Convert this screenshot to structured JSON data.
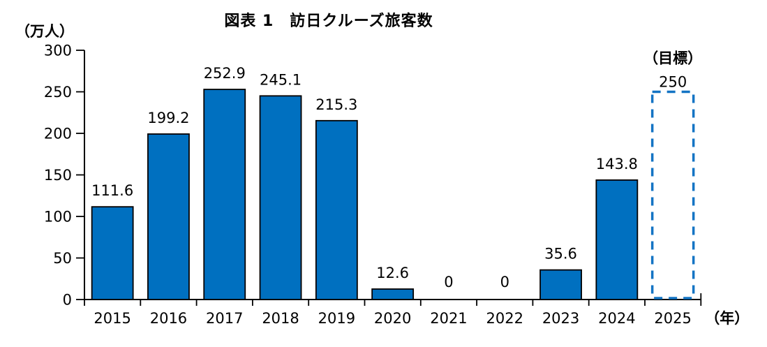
{
  "title": "図表 1　訪日クルーズ旅客数",
  "y_axis_unit": "（万人）",
  "x_axis_unit": "（年）",
  "target_annotation": "（目標）",
  "colors": {
    "bar_fill": "#0070C0",
    "bar_stroke": "#000000",
    "target_outline": "#1474C4",
    "axis": "#000000",
    "text": "#000000",
    "background": "#ffffff"
  },
  "chart_data": {
    "type": "bar",
    "title": "図表 1　訪日クルーズ旅客数",
    "categories": [
      "2015",
      "2016",
      "2017",
      "2018",
      "2019",
      "2020",
      "2021",
      "2022",
      "2023",
      "2024",
      "2025"
    ],
    "values": [
      111.6,
      199.2,
      252.9,
      245.1,
      215.3,
      12.6,
      0,
      0,
      35.6,
      143.8,
      250
    ],
    "value_labels": [
      "111.6",
      "199.2",
      "252.9",
      "245.1",
      "215.3",
      "12.6",
      "0",
      "0",
      "35.6",
      "143.8",
      "250"
    ],
    "bar_styles": [
      "solid",
      "solid",
      "solid",
      "solid",
      "solid",
      "solid",
      "solid",
      "solid",
      "solid",
      "solid",
      "dashed-target"
    ],
    "target": {
      "category": "2025",
      "value": 250,
      "label": "（目標）"
    },
    "ylabel": "（万人）",
    "xlabel": "（年）",
    "ylim": [
      0,
      300
    ],
    "ytick_step": 50,
    "yticks": [
      0,
      50,
      100,
      150,
      200,
      250,
      300
    ],
    "grid": false,
    "legend_position": "none"
  }
}
